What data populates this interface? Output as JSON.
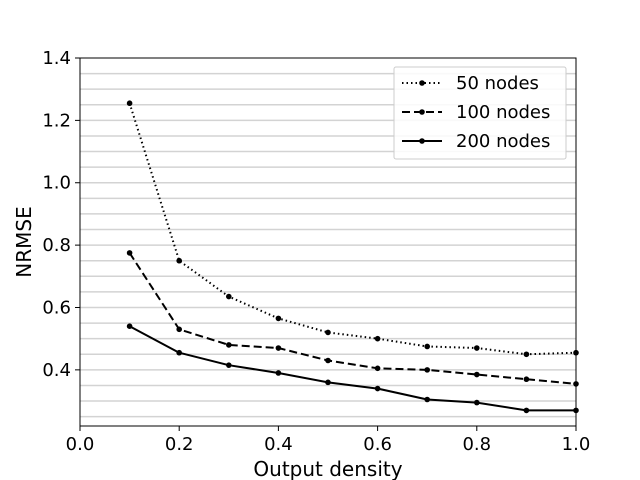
{
  "chart_data": {
    "type": "line",
    "title": "",
    "xlabel": "Output density",
    "ylabel": "NRMSE",
    "xlim": [
      0.0,
      1.0
    ],
    "ylim": [
      0.22,
      1.4
    ],
    "x_ticks": [
      "0.0",
      "0.2",
      "0.4",
      "0.6",
      "0.8",
      "1.0"
    ],
    "x_tick_values": [
      0.0,
      0.2,
      0.4,
      0.6,
      0.8,
      1.0
    ],
    "y_ticks": [
      "0.4",
      "0.6",
      "0.8",
      "1.0",
      "1.2",
      "1.4"
    ],
    "y_tick_values": [
      0.4,
      0.6,
      0.8,
      1.0,
      1.2,
      1.4
    ],
    "grid": "horizontal",
    "grid_y_values": [
      0.25,
      0.3,
      0.35,
      0.4,
      0.45,
      0.5,
      0.55,
      0.6,
      0.65,
      0.7,
      0.75,
      0.8,
      0.85,
      0.9,
      0.95,
      1.0,
      1.05,
      1.1,
      1.15,
      1.2,
      1.25,
      1.3,
      1.35
    ],
    "grid_color": "#d3d3d3",
    "line_color": "#000000",
    "legend_position": "top-right",
    "x": [
      0.1,
      0.2,
      0.3,
      0.4,
      0.5,
      0.6,
      0.7,
      0.8,
      0.9,
      1.0
    ],
    "series": [
      {
        "name": "50 nodes",
        "style": "dotted",
        "values": [
          1.255,
          0.75,
          0.635,
          0.565,
          0.52,
          0.5,
          0.475,
          0.47,
          0.45,
          0.455
        ]
      },
      {
        "name": "100 nodes",
        "style": "dashed",
        "values": [
          0.775,
          0.53,
          0.48,
          0.47,
          0.43,
          0.405,
          0.4,
          0.385,
          0.37,
          0.355
        ]
      },
      {
        "name": "200 nodes",
        "style": "solid",
        "values": [
          0.54,
          0.455,
          0.415,
          0.39,
          0.36,
          0.34,
          0.305,
          0.295,
          0.27,
          0.27
        ]
      }
    ]
  }
}
